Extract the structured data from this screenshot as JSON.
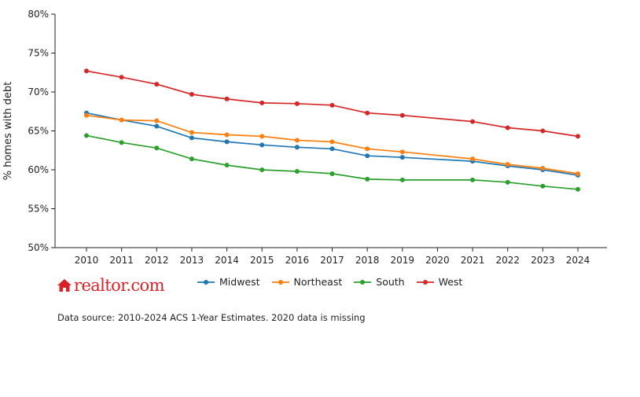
{
  "chart_data": {
    "type": "line",
    "ylabel": "% homes with debt",
    "xlabel": "",
    "ylim": [
      50,
      80
    ],
    "y_ticks": [
      "50%",
      "55%",
      "60%",
      "65%",
      "70%",
      "75%",
      "80%"
    ],
    "y_tick_values": [
      50,
      55,
      60,
      65,
      70,
      75,
      80
    ],
    "x": [
      2010,
      2011,
      2012,
      2013,
      2014,
      2015,
      2016,
      2017,
      2018,
      2019,
      2020,
      2021,
      2022,
      2023,
      2024
    ],
    "x_tick_labels": [
      "2010",
      "2011",
      "2012",
      "2013",
      "2014",
      "2015",
      "2016",
      "2017",
      "2018",
      "2019",
      "2020",
      "2021",
      "2022",
      "2023",
      "2024"
    ],
    "legend_position": "bottom",
    "series": [
      {
        "name": "Midwest",
        "color": "#1f77b4",
        "x": [
          2010,
          2011,
          2012,
          2013,
          2014,
          2015,
          2016,
          2017,
          2018,
          2019,
          2021,
          2022,
          2023,
          2024
        ],
        "values": [
          67.3,
          66.4,
          65.6,
          64.1,
          63.6,
          63.2,
          62.9,
          62.7,
          61.8,
          61.6,
          61.1,
          60.5,
          60.0,
          59.3
        ]
      },
      {
        "name": "Northeast",
        "color": "#ff7f0e",
        "x": [
          2010,
          2011,
          2012,
          2013,
          2014,
          2015,
          2016,
          2017,
          2018,
          2019,
          2021,
          2022,
          2023,
          2024
        ],
        "values": [
          67.0,
          66.4,
          66.3,
          64.8,
          64.5,
          64.3,
          63.8,
          63.6,
          62.7,
          62.3,
          61.4,
          60.7,
          60.2,
          59.5
        ]
      },
      {
        "name": "South",
        "color": "#2ca02c",
        "x": [
          2010,
          2011,
          2012,
          2013,
          2014,
          2015,
          2016,
          2017,
          2018,
          2019,
          2021,
          2022,
          2023,
          2024
        ],
        "values": [
          64.4,
          63.5,
          62.8,
          61.4,
          60.6,
          60.0,
          59.8,
          59.5,
          58.8,
          58.7,
          58.7,
          58.4,
          57.9,
          57.5
        ]
      },
      {
        "name": "West",
        "color": "#d62728",
        "x": [
          2010,
          2011,
          2012,
          2013,
          2014,
          2015,
          2016,
          2017,
          2018,
          2019,
          2021,
          2022,
          2023,
          2024
        ],
        "values": [
          72.7,
          71.9,
          71.0,
          69.7,
          69.1,
          68.6,
          68.5,
          68.3,
          67.3,
          67.0,
          66.2,
          65.4,
          65.0,
          64.3
        ]
      }
    ]
  },
  "logo": {
    "text": "realtor.com",
    "icon": "house-icon",
    "color": "#d92228"
  },
  "source_note": "Data source: 2010-2024 ACS 1-Year Estimates. 2020 data is missing"
}
